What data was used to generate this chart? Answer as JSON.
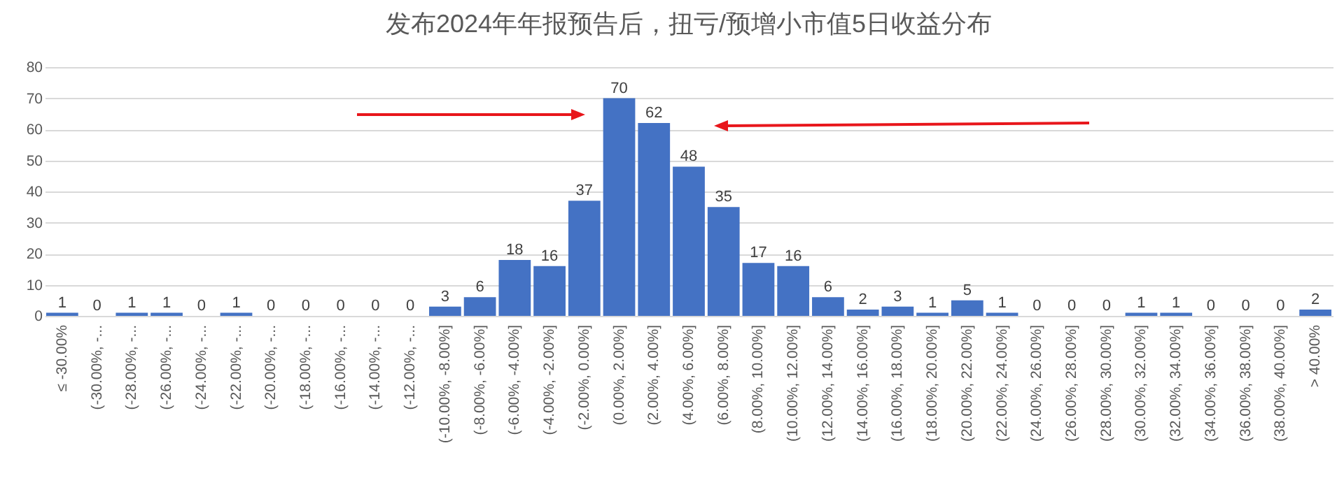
{
  "chart_data": {
    "type": "bar",
    "title": "发布2024年年报预告后，扭亏/预增小市值5日收益分布",
    "categories": [
      "≤ -30.00%",
      "(-30.00%, -...",
      "(-28.00%, -...",
      "(-26.00%, -...",
      "(-24.00%, -...",
      "(-22.00%, -...",
      "(-20.00%, -...",
      "(-18.00%, -...",
      "(-16.00%, -...",
      "(-14.00%, -...",
      "(-12.00%, -...",
      "(-10.00%, -8.00%]",
      "(-8.00%, -6.00%]",
      "(-6.00%, -4.00%]",
      "(-4.00%, -2.00%]",
      "(-2.00%, 0.00%]",
      "(0.00%, 2.00%]",
      "(2.00%, 4.00%]",
      "(4.00%, 6.00%]",
      "(6.00%, 8.00%]",
      "(8.00%, 10.00%]",
      "(10.00%, 12.00%]",
      "(12.00%, 14.00%]",
      "(14.00%, 16.00%]",
      "(16.00%, 18.00%]",
      "(18.00%, 20.00%]",
      "(20.00%, 22.00%]",
      "(22.00%, 24.00%]",
      "(24.00%, 26.00%]",
      "(26.00%, 28.00%]",
      "(28.00%, 30.00%]",
      "(30.00%, 32.00%]",
      "(32.00%, 34.00%]",
      "(34.00%, 36.00%]",
      "(36.00%, 38.00%]",
      "(38.00%, 40.00%]",
      "> 40.00%"
    ],
    "values": [
      1,
      0,
      1,
      1,
      0,
      1,
      0,
      0,
      0,
      0,
      0,
      3,
      6,
      18,
      16,
      37,
      70,
      62,
      48,
      35,
      17,
      16,
      6,
      2,
      3,
      1,
      5,
      1,
      0,
      0,
      0,
      1,
      1,
      0,
      0,
      0,
      2
    ],
    "color": "#4472c4",
    "ylim": [
      0,
      80
    ],
    "yticks": [
      0,
      10,
      20,
      30,
      40,
      50,
      60,
      70,
      80
    ],
    "grid": "y",
    "data_labels": true
  }
}
